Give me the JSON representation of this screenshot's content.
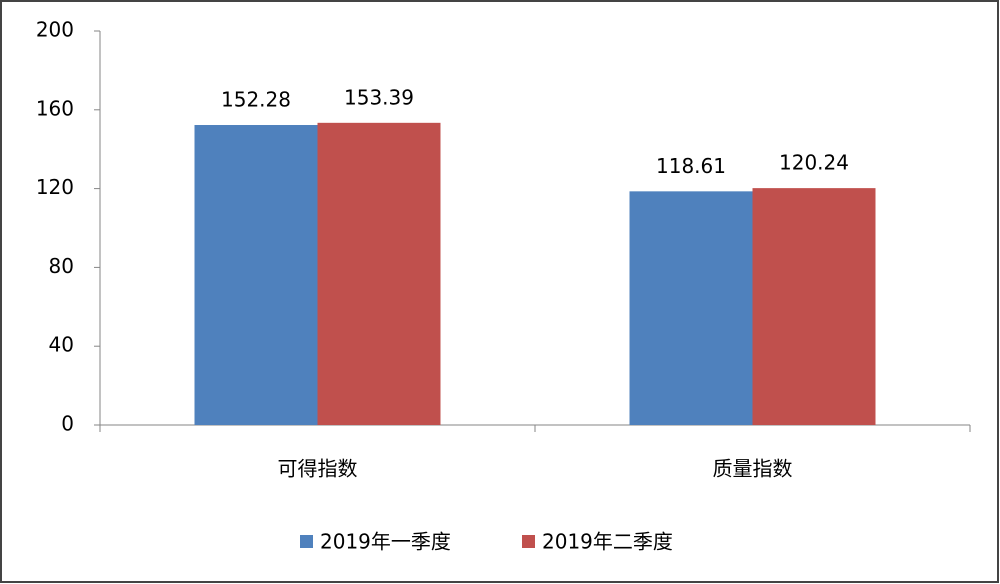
{
  "chart_data": {
    "type": "bar",
    "categories": [
      "可得指数",
      "质量指数"
    ],
    "series": [
      {
        "name": "2019年一季度",
        "color": "#4f81bd",
        "values": [
          152.28,
          118.61
        ]
      },
      {
        "name": "2019年二季度",
        "color": "#c0504d",
        "values": [
          153.39,
          120.24
        ]
      }
    ],
    "ylim": [
      0,
      200
    ],
    "yticks": [
      0,
      40,
      80,
      120,
      160,
      200
    ],
    "grid": false,
    "legend": "bottom"
  }
}
